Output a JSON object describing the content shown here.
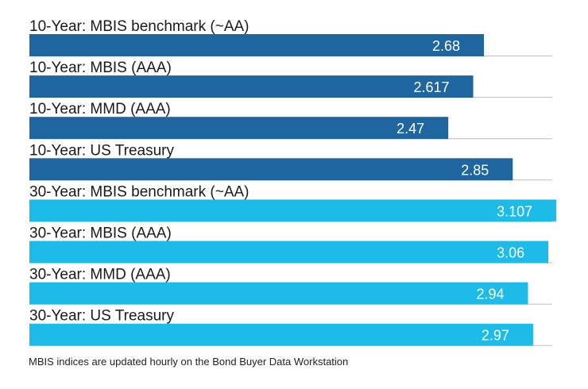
{
  "chart_data": {
    "type": "bar",
    "orientation": "horizontal",
    "categories": [
      "10-Year: MBIS benchmark (~AA)",
      "10-Year: MBIS (AAA)",
      "10-Year: MMD (AAA)",
      "10-Year: US Treasury",
      "30-Year: MBIS benchmark (~AA)",
      "30-Year: MBIS (AAA)",
      "30-Year: MMD (AAA)",
      "30-Year: US Treasury"
    ],
    "values": [
      2.68,
      2.617,
      2.47,
      2.85,
      3.107,
      3.06,
      2.94,
      2.97
    ],
    "value_labels": [
      "2.68",
      "2.617",
      "2.47",
      "2.85",
      "3.107",
      "3.06",
      "2.94",
      "2.97"
    ],
    "bar_colors": [
      "#1f66a1",
      "#1f66a1",
      "#1f66a1",
      "#1f66a1",
      "#1cbbe8",
      "#1cbbe8",
      "#1cbbe8",
      "#1cbbe8"
    ],
    "xlim": [
      0,
      3.2
    ],
    "grid": false,
    "legend": "none"
  },
  "footnote": "MBIS indices are updated hourly on the Bond Buyer Data Workstation"
}
